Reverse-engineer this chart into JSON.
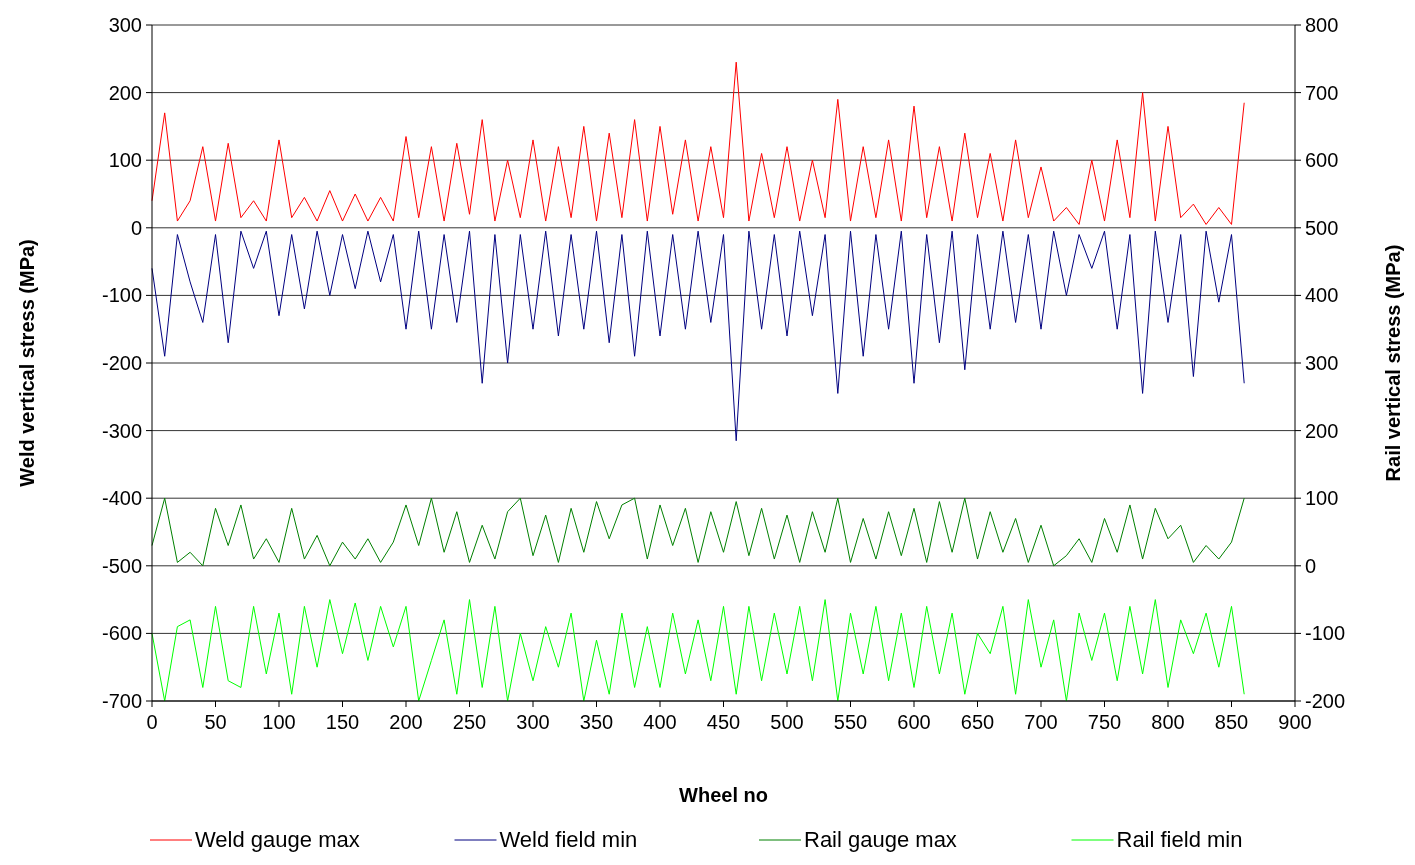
{
  "chart_data": {
    "type": "line",
    "xlabel": "Wheel no",
    "ylabel": "Weld vertical stress (MPa)",
    "y2label": "Rail vertical stress (MPa)",
    "x": [
      0,
      10,
      20,
      30,
      40,
      50,
      60,
      70,
      80,
      90,
      100,
      110,
      120,
      130,
      140,
      150,
      160,
      170,
      180,
      190,
      200,
      210,
      220,
      230,
      240,
      250,
      260,
      270,
      280,
      290,
      300,
      310,
      320,
      330,
      340,
      350,
      360,
      370,
      380,
      390,
      400,
      410,
      420,
      430,
      440,
      450,
      460,
      470,
      480,
      490,
      500,
      510,
      520,
      530,
      540,
      550,
      560,
      570,
      580,
      590,
      600,
      610,
      620,
      630,
      640,
      650,
      660,
      670,
      680,
      690,
      700,
      710,
      720,
      730,
      740,
      750,
      760,
      770,
      780,
      790,
      800,
      810,
      820,
      830,
      840,
      850,
      860
    ],
    "xlim": [
      0,
      900
    ],
    "xticks": [
      0,
      50,
      100,
      150,
      200,
      250,
      300,
      350,
      400,
      450,
      500,
      550,
      600,
      650,
      700,
      750,
      800,
      850,
      900
    ],
    "ylim": [
      -700,
      300
    ],
    "yticks": [
      -700,
      -600,
      -500,
      -400,
      -300,
      -200,
      -100,
      0,
      100,
      200,
      300
    ],
    "y2lim": [
      -200,
      800
    ],
    "y2ticks": [
      -200,
      -100,
      0,
      100,
      200,
      300,
      400,
      500,
      600,
      700,
      800
    ],
    "grid": "y",
    "legend": "bottom",
    "marker": "none",
    "line_style": "solid",
    "series": [
      {
        "name": "Weld gauge max",
        "color": "#ff0000",
        "values": [
          40,
          170,
          10,
          40,
          120,
          10,
          125,
          15,
          40,
          10,
          130,
          15,
          45,
          10,
          55,
          10,
          50,
          10,
          45,
          10,
          135,
          15,
          120,
          10,
          125,
          20,
          160,
          10,
          100,
          15,
          130,
          10,
          120,
          15,
          150,
          10,
          140,
          15,
          160,
          10,
          150,
          20,
          130,
          10,
          120,
          15,
          245,
          10,
          110,
          15,
          120,
          10,
          100,
          15,
          190,
          10,
          120,
          15,
          130,
          10,
          180,
          15,
          120,
          10,
          140,
          15,
          110,
          10,
          130,
          15,
          90,
          10,
          30,
          5,
          100,
          10,
          130,
          15,
          200,
          10,
          150,
          15,
          35,
          5,
          30,
          5,
          185
        ]
      },
      {
        "name": "Weld field min",
        "color": "#000080",
        "values": [
          -60,
          -190,
          -10,
          -80,
          -140,
          -10,
          -170,
          -5,
          -60,
          -5,
          -130,
          -10,
          -120,
          -5,
          -100,
          -10,
          -90,
          -5,
          -80,
          -10,
          -150,
          -5,
          -150,
          -10,
          -140,
          -5,
          -230,
          -10,
          -200,
          -10,
          -150,
          -5,
          -160,
          -10,
          -150,
          -5,
          -170,
          -10,
          -190,
          -5,
          -160,
          -10,
          -150,
          -5,
          -140,
          -10,
          -315,
          -5,
          -150,
          -10,
          -160,
          -5,
          -130,
          -10,
          -245,
          -5,
          -190,
          -10,
          -150,
          -5,
          -230,
          -10,
          -170,
          -5,
          -210,
          -10,
          -150,
          -5,
          -140,
          -10,
          -150,
          -5,
          -100,
          -10,
          -60,
          -5,
          -150,
          -10,
          -245,
          -5,
          -140,
          -10,
          -220,
          -5,
          -110,
          -10,
          -230
        ]
      },
      {
        "name": "Rail gauge max",
        "color": "#008000",
        "axis": "y2",
        "values": [
          30,
          100,
          5,
          20,
          0,
          85,
          30,
          90,
          10,
          40,
          5,
          85,
          10,
          45,
          0,
          35,
          10,
          40,
          5,
          35,
          90,
          30,
          100,
          20,
          80,
          5,
          60,
          10,
          80,
          100,
          15,
          75,
          5,
          85,
          20,
          95,
          40,
          90,
          100,
          10,
          90,
          30,
          85,
          5,
          80,
          20,
          95,
          15,
          85,
          10,
          75,
          5,
          80,
          20,
          100,
          5,
          70,
          10,
          80,
          15,
          85,
          5,
          95,
          20,
          100,
          10,
          80,
          20,
          70,
          5,
          60,
          0,
          15,
          40,
          5,
          70,
          20,
          90,
          10,
          85,
          40,
          60,
          5,
          30,
          10,
          35,
          100
        ]
      },
      {
        "name": "Rail field min",
        "color": "#00ff00",
        "axis": "y2",
        "values": [
          -100,
          -200,
          -90,
          -80,
          -180,
          -60,
          -170,
          -180,
          -60,
          -160,
          -70,
          -190,
          -60,
          -150,
          -50,
          -130,
          -55,
          -140,
          -60,
          -120,
          -60,
          -200,
          -140,
          -80,
          -190,
          -50,
          -180,
          -60,
          -200,
          -100,
          -170,
          -90,
          -150,
          -70,
          -200,
          -110,
          -190,
          -70,
          -180,
          -90,
          -180,
          -70,
          -160,
          -80,
          -170,
          -60,
          -190,
          -60,
          -170,
          -70,
          -160,
          -60,
          -170,
          -50,
          -200,
          -70,
          -160,
          -60,
          -170,
          -70,
          -180,
          -60,
          -160,
          -70,
          -190,
          -100,
          -130,
          -60,
          -190,
          -50,
          -150,
          -80,
          -200,
          -70,
          -140,
          -70,
          -170,
          -60,
          -160,
          -50,
          -180,
          -80,
          -130,
          -70,
          -150,
          -60,
          -190
        ]
      }
    ]
  }
}
